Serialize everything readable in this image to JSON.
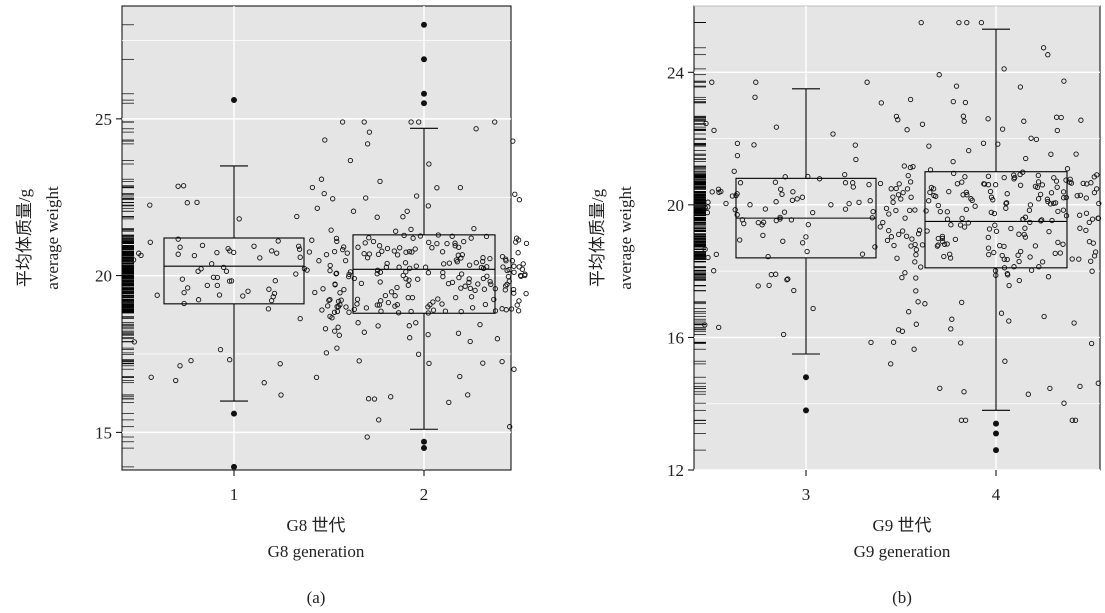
{
  "chart_data": [
    {
      "type": "boxplot",
      "panel_label": "(a)",
      "ylabel_cn": "平均体质量/g",
      "ylabel_en": "average weight",
      "xlabel_cn": "G8 世代",
      "xlabel_en": "G8 generation",
      "categories": [
        "1",
        "2"
      ],
      "yticks": [
        15,
        20,
        25
      ],
      "ylim": [
        13.8,
        28.6
      ],
      "grid": true,
      "boxes": [
        {
          "category": "1",
          "whisker_low": 16.0,
          "q1": 19.1,
          "median": 20.3,
          "q3": 21.2,
          "whisker_high": 23.5,
          "outliers": [
            15.6,
            25.6,
            13.9
          ]
        },
        {
          "category": "2",
          "whisker_low": 15.1,
          "q1": 18.8,
          "median": 20.2,
          "q3": 21.3,
          "whisker_high": 24.7,
          "outliers": [
            14.5,
            14.7,
            25.5,
            25.8,
            26.9,
            28.0
          ]
        }
      ]
    },
    {
      "type": "boxplot",
      "panel_label": "(b)",
      "ylabel_cn": "平均体质量/g",
      "ylabel_en": "average weight",
      "xlabel_cn": "G9 世代",
      "xlabel_en": "G9 generation",
      "categories": [
        "3",
        "4"
      ],
      "yticks": [
        12,
        16,
        20,
        24
      ],
      "ylim": [
        12,
        26.0
      ],
      "grid": true,
      "boxes": [
        {
          "category": "3",
          "whisker_low": 15.5,
          "q1": 18.4,
          "median": 19.6,
          "q3": 20.8,
          "whisker_high": 23.5,
          "outliers": [
            14.8,
            13.8
          ]
        },
        {
          "category": "4",
          "whisker_low": 13.8,
          "q1": 18.1,
          "median": 19.5,
          "q3": 21.0,
          "whisker_high": 25.3,
          "outliers": [
            13.4,
            13.1,
            12.6
          ]
        }
      ]
    }
  ]
}
